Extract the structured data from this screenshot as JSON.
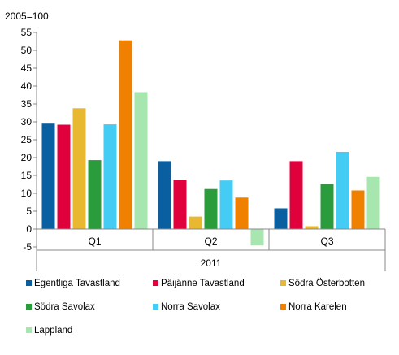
{
  "chart_data": {
    "type": "bar",
    "ylabel": "2005=100",
    "group_label": "2011",
    "categories": [
      "Q1",
      "Q2",
      "Q3"
    ],
    "ylim": [
      -5,
      55
    ],
    "yticks": [
      -5,
      0,
      5,
      10,
      15,
      20,
      25,
      30,
      35,
      40,
      45,
      50,
      55
    ],
    "grid": false,
    "legend_position": "bottom",
    "series": [
      {
        "name": "Egentliga Tavastland",
        "color": "#0a5fa0",
        "values": [
          29.5,
          19.0,
          5.8
        ]
      },
      {
        "name": "Päijänne Tavastland",
        "color": "#e0003c",
        "values": [
          29.2,
          13.8,
          19.0
        ]
      },
      {
        "name": "Södra Österbotten",
        "color": "#e8b830",
        "values": [
          33.8,
          3.5,
          0.8
        ]
      },
      {
        "name": "Södra Savolax",
        "color": "#2a9c3c",
        "values": [
          19.3,
          11.2,
          12.6
        ]
      },
      {
        "name": "Norra Savolax",
        "color": "#44ccf4",
        "values": [
          29.3,
          13.6,
          21.6
        ]
      },
      {
        "name": "Norra Karelen",
        "color": "#f08000",
        "values": [
          52.8,
          8.8,
          10.8
        ]
      },
      {
        "name": "Lappland",
        "color": "#a8e6b0",
        "values": [
          38.3,
          -4.6,
          14.6
        ]
      }
    ]
  }
}
